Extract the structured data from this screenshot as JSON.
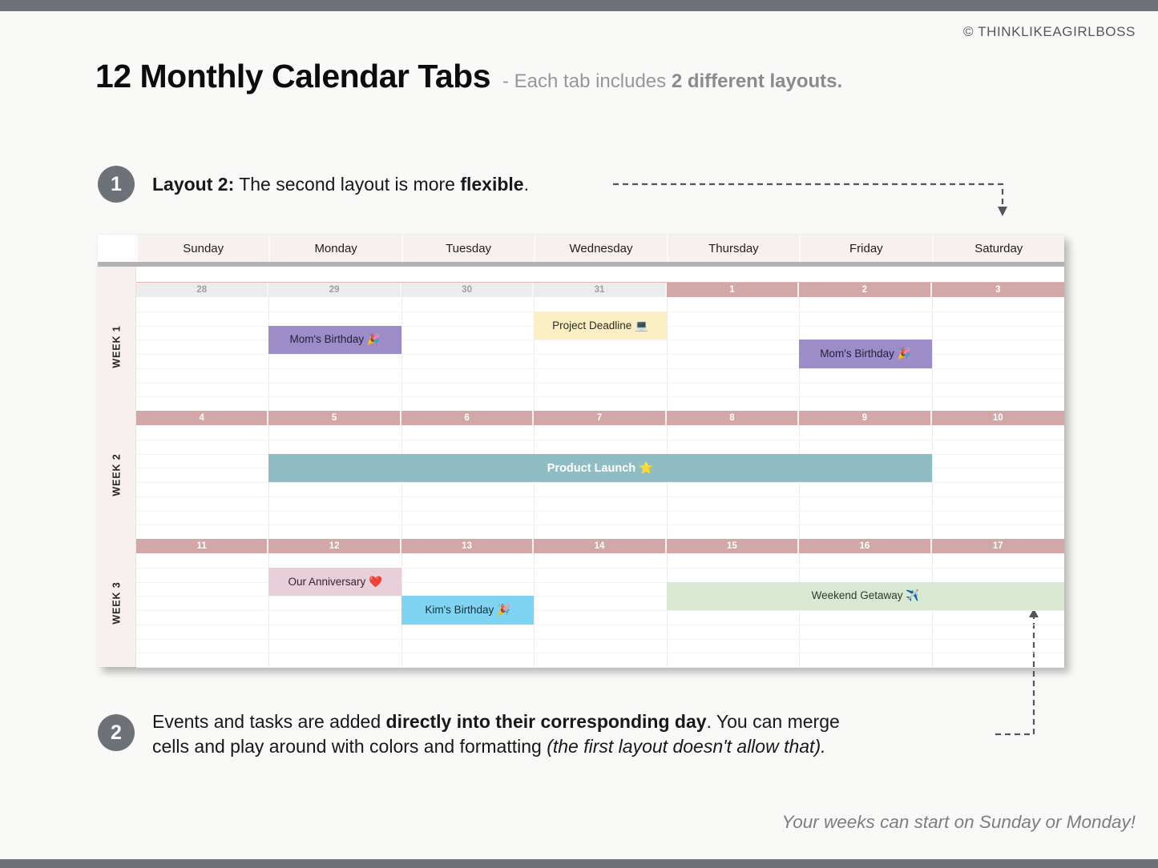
{
  "page": {
    "copyright": "© THINKLIKEAGIRLBOSS",
    "title": "12 Monthly Calendar Tabs",
    "subtitle": {
      "prefix": "- Each tab includes ",
      "bold": "2 different layouts."
    },
    "footer_note": "Your weeks can start on Sunday or Monday!"
  },
  "steps": {
    "one": {
      "number": "1",
      "bold_lead": "Layout 2:",
      "mid": " The second layout is more ",
      "bold_word": "flexible",
      "tail": "."
    },
    "two": {
      "number": "2",
      "line1": {
        "prefix": "Events and tasks are added ",
        "bold": "directly into their corresponding day",
        "suffix": ". You can merge"
      },
      "line2": {
        "prefix": "cells and play around with colors and formatting ",
        "italic": "(the first layout doesn't allow that)."
      }
    }
  },
  "calendar": {
    "day_headers": [
      "Sunday",
      "Monday",
      "Tuesday",
      "Wednesday",
      "Thursday",
      "Friday",
      "Saturday"
    ],
    "weeks": [
      {
        "label": "WEEK 1",
        "dates": [
          {
            "n": "28",
            "muted": true
          },
          {
            "n": "29",
            "muted": true
          },
          {
            "n": "30",
            "muted": true
          },
          {
            "n": "31",
            "muted": true
          },
          {
            "n": "1",
            "muted": false
          },
          {
            "n": "2",
            "muted": false
          },
          {
            "n": "3",
            "muted": false
          }
        ]
      },
      {
        "label": "WEEK 2",
        "dates": [
          {
            "n": "4"
          },
          {
            "n": "5"
          },
          {
            "n": "6"
          },
          {
            "n": "7"
          },
          {
            "n": "8"
          },
          {
            "n": "9"
          },
          {
            "n": "10"
          }
        ]
      },
      {
        "label": "WEEK 3",
        "dates": [
          {
            "n": "11"
          },
          {
            "n": "12"
          },
          {
            "n": "13"
          },
          {
            "n": "14"
          },
          {
            "n": "15"
          },
          {
            "n": "16"
          },
          {
            "n": "17"
          }
        ]
      }
    ],
    "events": [
      {
        "label": "Mom's Birthday 🎉",
        "week": 0,
        "day": 1,
        "day_span": 1,
        "row": 3,
        "row_span": 2,
        "bg": "#9c8cc8",
        "fg": "#241f3d",
        "bold": false
      },
      {
        "label": "Project Deadline 💻",
        "week": 0,
        "day": 3,
        "day_span": 1,
        "row": 2,
        "row_span": 2,
        "bg": "#fcefc3",
        "fg": "#2e2b20",
        "bold": false
      },
      {
        "label": "Mom's Birthday 🎉",
        "week": 0,
        "day": 5,
        "day_span": 1,
        "row": 4,
        "row_span": 2,
        "bg": "#9c8cc8",
        "fg": "#241f3d",
        "bold": false
      },
      {
        "label": "Product Launch ⭐",
        "week": 1,
        "day": 1,
        "day_span": 5,
        "row": 3,
        "row_span": 2,
        "bg": "#90bdc4",
        "fg": "#ffffff",
        "bold": true
      },
      {
        "label": "Our Anniversary ❤️",
        "week": 2,
        "day": 1,
        "day_span": 1,
        "row": 2,
        "row_span": 2,
        "bg": "#e9cfda",
        "fg": "#35242c",
        "bold": false
      },
      {
        "label": "Kim's Birthday 🎉",
        "week": 2,
        "day": 2,
        "day_span": 1,
        "row": 4,
        "row_span": 2,
        "bg": "#7fd4f3",
        "fg": "#17303c",
        "bold": false
      },
      {
        "label": "Weekend Getaway ✈️",
        "week": 2,
        "day": 4,
        "day_span": 3,
        "row": 3,
        "row_span": 2,
        "bg": "#d9e9d1",
        "fg": "#2c3a2c",
        "bold": false
      }
    ],
    "colors": {
      "header_bg": "#f7f0ee",
      "band_pink": "#d1a8a7",
      "band_muted_bg": "#ececec",
      "band_muted_fg": "#9f9f9f",
      "divider_gray": "#b2b2b4",
      "accent_line": "#ddbab8"
    }
  },
  "theme": {
    "bar_gray": "#6e7278",
    "step_circle_gray": "#6d7178",
    "arrow_gray": "#52565c"
  }
}
